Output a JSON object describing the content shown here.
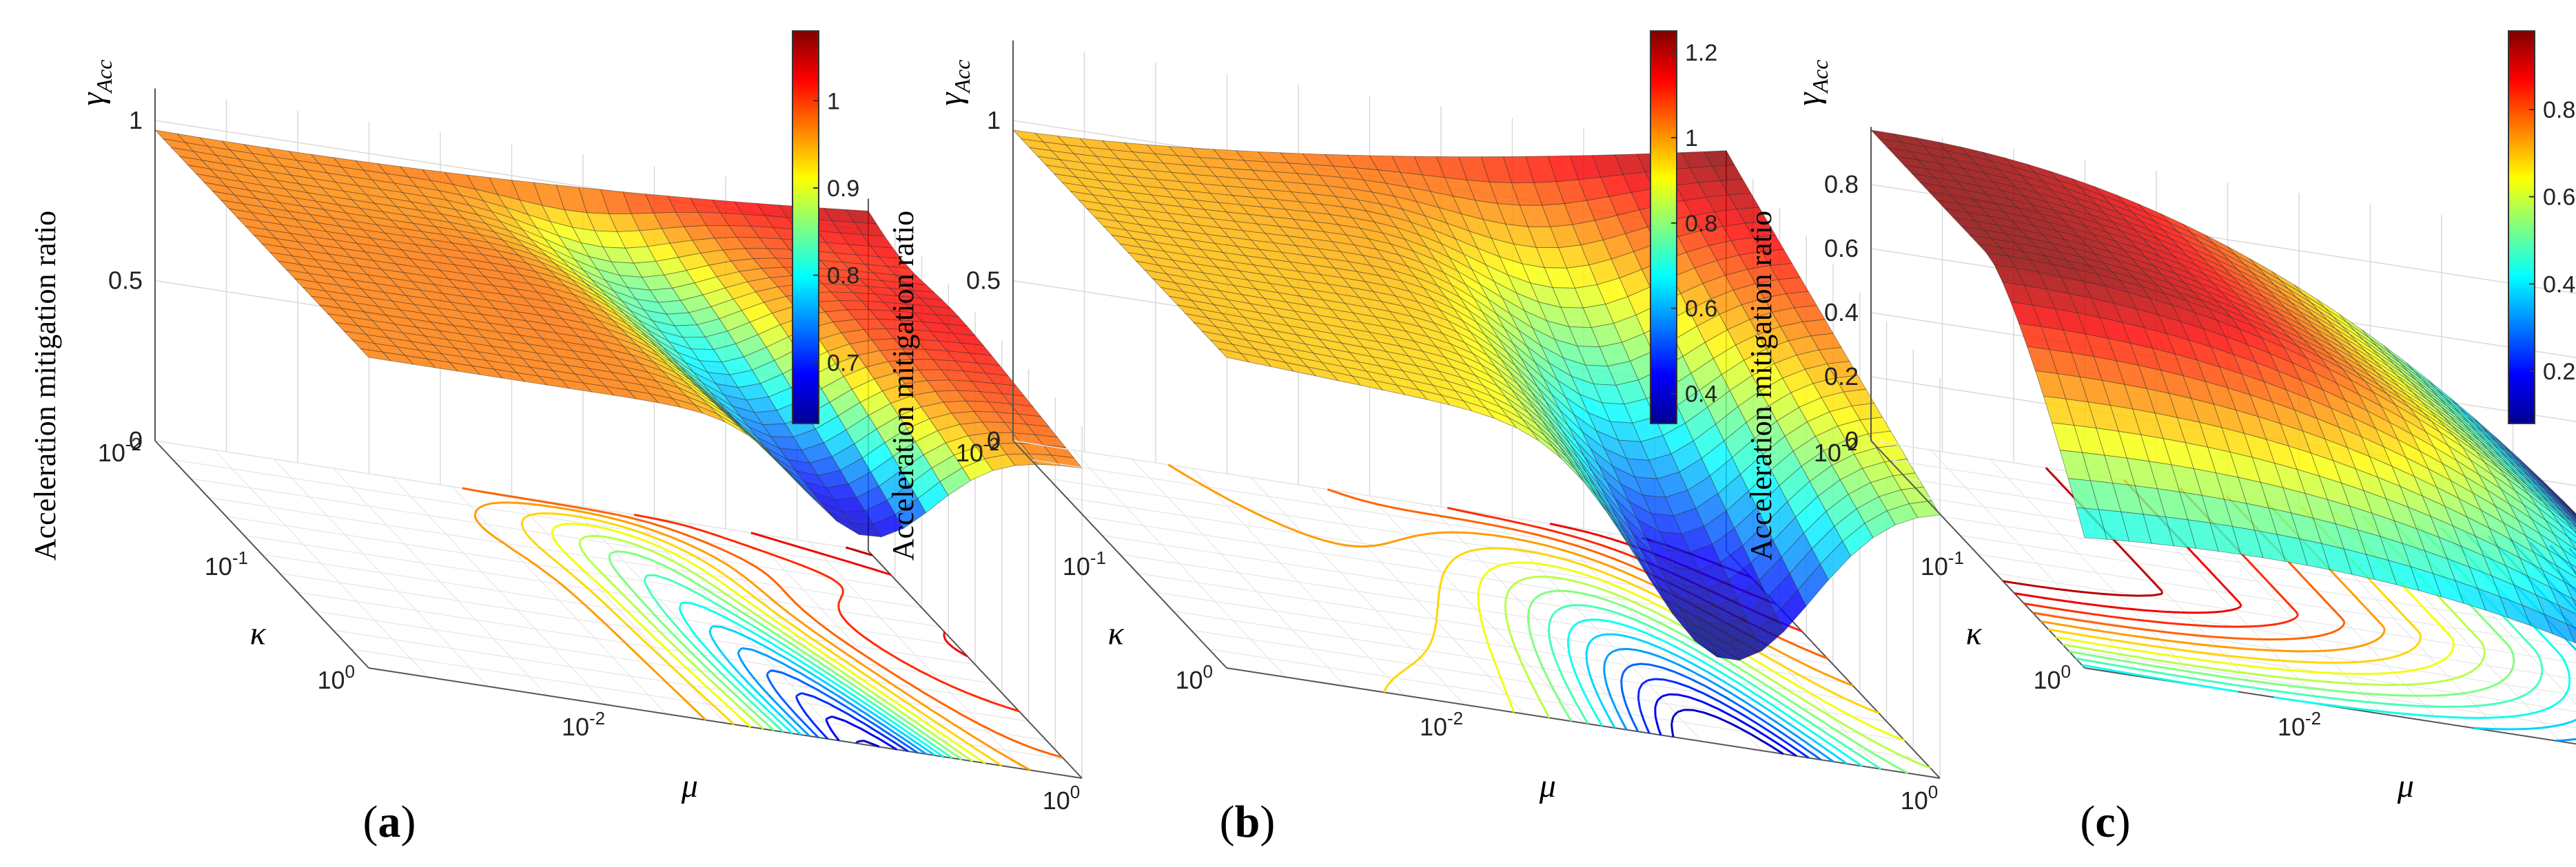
{
  "figure": {
    "panels": [
      {
        "id": "a",
        "label": "(a)",
        "zlabel": "Acceleration mitigation ratio",
        "zsymbol": "γ",
        "zsymbol_sub": "Acc",
        "zticks": [
          "0",
          "0.5",
          "1"
        ],
        "x_symbol": "μ",
        "y_symbol": "κ",
        "x_ticks": [
          {
            "base": "10",
            "exp": "-2"
          },
          {
            "base": "10",
            "exp": "0"
          }
        ],
        "y_ticks": [
          {
            "base": "10",
            "exp": "-2"
          },
          {
            "base": "10",
            "exp": "-1"
          },
          {
            "base": "10",
            "exp": "0"
          }
        ],
        "colorbar_ticks": [
          "1",
          "0.9",
          "0.8",
          "0.7"
        ],
        "colorbar_range": [
          0.63,
          1.08
        ]
      },
      {
        "id": "b",
        "label": "(b)",
        "zlabel": "Acceleration mitigation ratio",
        "zsymbol": "γ",
        "zsymbol_sub": "Acc",
        "zticks": [
          "0",
          "0.5",
          "1"
        ],
        "x_symbol": "μ",
        "y_symbol": "κ",
        "x_ticks": [
          {
            "base": "10",
            "exp": "-2"
          },
          {
            "base": "10",
            "exp": "0"
          }
        ],
        "y_ticks": [
          {
            "base": "10",
            "exp": "-2"
          },
          {
            "base": "10",
            "exp": "-1"
          },
          {
            "base": "10",
            "exp": "0"
          }
        ],
        "colorbar_ticks": [
          "1.2",
          "1",
          "0.8",
          "0.6",
          "0.4"
        ],
        "colorbar_range": [
          0.33,
          1.25
        ]
      },
      {
        "id": "c",
        "label": "(c)",
        "zlabel": "Acceleration mitigation ratio",
        "zsymbol": "γ",
        "zsymbol_sub": "Acc",
        "zticks": [
          "0",
          "0.2",
          "0.4",
          "0.6",
          "0.8"
        ],
        "x_symbol": "μ",
        "y_symbol": "κ",
        "x_ticks": [
          {
            "base": "10",
            "exp": "-2"
          },
          {
            "base": "10",
            "exp": "0"
          }
        ],
        "y_ticks": [
          {
            "base": "10",
            "exp": "-2"
          },
          {
            "base": "10",
            "exp": "-1"
          },
          {
            "base": "10",
            "exp": "0"
          }
        ],
        "colorbar_ticks": [
          "0.8",
          "0.6",
          "0.4",
          "0.2"
        ],
        "colorbar_range": [
          0.08,
          0.98
        ]
      }
    ]
  },
  "chart_data": [
    {
      "type": "surface",
      "panel": "a",
      "title": "",
      "xlabel": "μ",
      "ylabel": "κ",
      "zlabel": "Acceleration mitigation ratio γAcc",
      "x_scale": "log",
      "y_scale": "log",
      "x_range": [
        0.001,
        1
      ],
      "y_range": [
        0.01,
        1
      ],
      "z_range": [
        0,
        1.1
      ],
      "color_range": [
        0.63,
        1.08
      ],
      "projection_contours": true,
      "description_samples": {
        "mu": [
          0.001,
          0.01,
          0.1,
          0.3,
          1
        ],
        "kappa_0.01": [
          0.97,
          0.98,
          1.02,
          1.06,
          1.08
        ],
        "kappa_0.1": [
          0.97,
          0.95,
          0.8,
          0.72,
          0.82
        ],
        "kappa_1": [
          0.97,
          0.96,
          0.9,
          0.68,
          0.75
        ]
      }
    },
    {
      "type": "surface",
      "panel": "b",
      "title": "",
      "xlabel": "μ",
      "ylabel": "κ",
      "zlabel": "Acceleration mitigation ratio γAcc",
      "x_scale": "log",
      "y_scale": "log",
      "x_range": [
        0.001,
        1
      ],
      "y_range": [
        0.01,
        1
      ],
      "z_range": [
        0,
        1.25
      ],
      "color_range": [
        0.33,
        1.25
      ],
      "projection_contours": true,
      "description_samples": {
        "mu": [
          0.001,
          0.01,
          0.1,
          0.3,
          1
        ],
        "kappa_0.01": [
          0.98,
          1.0,
          1.12,
          1.22,
          1.25
        ],
        "kappa_0.1": [
          0.95,
          0.88,
          0.7,
          0.55,
          0.8
        ],
        "kappa_1": [
          0.93,
          0.85,
          0.55,
          0.34,
          0.62
        ]
      }
    },
    {
      "type": "surface",
      "panel": "c",
      "title": "",
      "xlabel": "μ",
      "ylabel": "κ",
      "zlabel": "Acceleration mitigation ratio γAcc",
      "x_scale": "log",
      "y_scale": "log",
      "x_range": [
        0.001,
        1
      ],
      "y_range": [
        0.01,
        1
      ],
      "z_range": [
        0,
        0.98
      ],
      "color_range": [
        0.08,
        0.98
      ],
      "projection_contours": true,
      "description_samples": {
        "mu": [
          0.001,
          0.01,
          0.1,
          0.3,
          1
        ],
        "kappa_0.01": [
          0.96,
          0.95,
          0.85,
          0.55,
          0.12
        ],
        "kappa_0.1": [
          0.95,
          0.9,
          0.72,
          0.45,
          0.1
        ],
        "kappa_1": [
          0.4,
          0.42,
          0.38,
          0.25,
          0.08
        ]
      }
    }
  ]
}
